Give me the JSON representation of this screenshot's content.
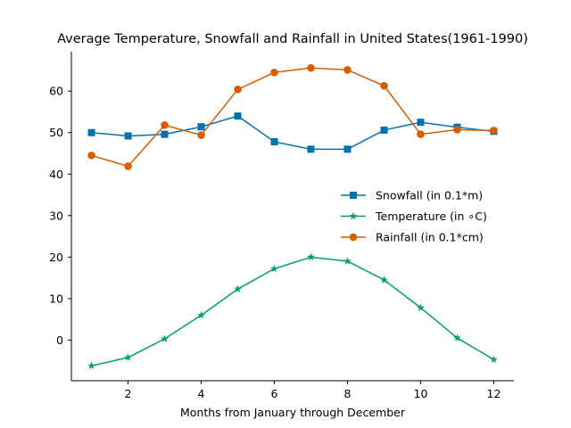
{
  "chart_data": {
    "type": "line",
    "title": "Average Temperature, Snowfall and Rainfall in United States(1961-1990)",
    "xlabel": "Months from January through December",
    "ylabel": "",
    "x": [
      1,
      2,
      3,
      4,
      5,
      6,
      7,
      8,
      9,
      10,
      11,
      12
    ],
    "xlim": [
      0.45,
      12.55
    ],
    "ylim": [
      -9.8,
      69.5
    ],
    "xticks": [
      2,
      4,
      6,
      8,
      10,
      12
    ],
    "yticks": [
      0,
      10,
      20,
      30,
      40,
      50,
      60
    ],
    "grid": false,
    "legend_position": "center-right",
    "series": [
      {
        "name": "Snowfall (in 0.1*m)",
        "color": "#0072b2",
        "marker": "square",
        "values": [
          50.0,
          49.2,
          49.6,
          51.4,
          54.0,
          47.8,
          46.0,
          46.0,
          50.6,
          52.5,
          51.3,
          50.3
        ]
      },
      {
        "name": "Temperature (in ∘C)",
        "color": "#009e73",
        "marker": "star",
        "values": [
          -6.2,
          -4.2,
          0.3,
          6.0,
          12.3,
          17.2,
          20.0,
          19.0,
          14.5,
          7.8,
          0.5,
          -4.7
        ]
      },
      {
        "name": "Rainfall (in 0.1*cm)",
        "color": "#d55e00",
        "marker": "circle",
        "values": [
          44.5,
          41.9,
          51.8,
          49.4,
          60.4,
          64.5,
          65.6,
          65.1,
          61.3,
          49.6,
          50.7,
          50.5
        ]
      }
    ]
  }
}
